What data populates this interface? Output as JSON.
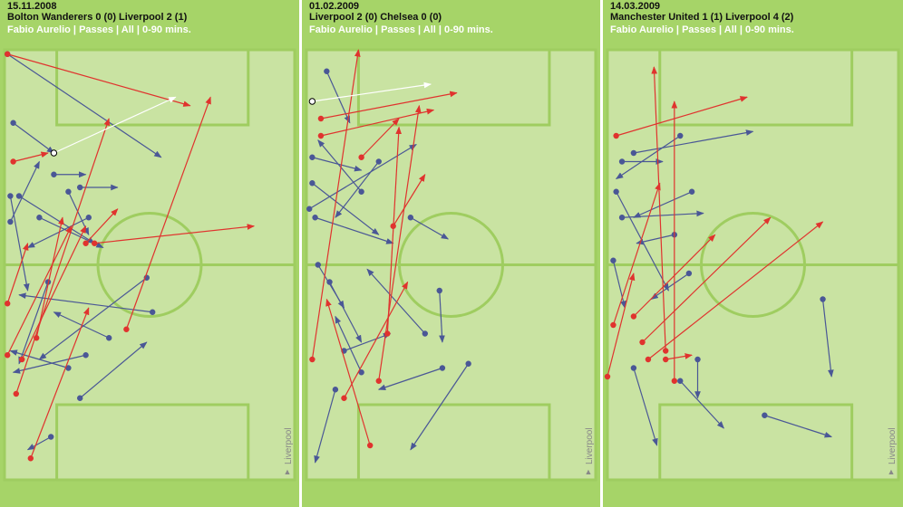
{
  "chart_data": [
    {
      "type": "pass-map",
      "date": "15.11.2008",
      "title": "Bolton Wanderers 0 (0) Liverpool 2 (1)",
      "subtitle": "Fabio Aurelio | Passes | All | 0-90 mins.",
      "team_label": "Liverpool",
      "xlim": [
        0,
        100
      ],
      "ylim": [
        0,
        100
      ],
      "series": [
        {
          "color": "#4a5796",
          "x": [
            1,
            3,
            5,
            26,
            12,
            2,
            17,
            49,
            51,
            36,
            26,
            16,
            22,
            28,
            29,
            15,
            2,
            22
          ],
          "y": [
            1,
            17,
            34,
            32,
            39,
            40,
            29,
            53,
            61,
            67,
            81,
            90,
            74,
            71,
            39,
            54,
            34,
            33
          ],
          "end_x": [
            54,
            17,
            31,
            39,
            34,
            12,
            28,
            12,
            5,
            17,
            49,
            8,
            2,
            3,
            8,
            5,
            8,
            29
          ],
          "end_y": [
            25,
            24,
            45,
            32,
            46,
            26,
            29,
            72,
            57,
            61,
            68,
            93,
            70,
            75,
            46,
            73,
            56,
            43
          ]
        },
        {
          "color": "#e0332e",
          "x": [
            1,
            31,
            3,
            42,
            4,
            9,
            1,
            6,
            11,
            28,
            1
          ],
          "y": [
            1,
            45,
            26,
            65,
            80,
            95,
            71,
            72,
            67,
            45,
            59
          ],
          "end_x": [
            64,
            86,
            15,
            71,
            36,
            29,
            23,
            28,
            20,
            39,
            8
          ],
          "end_y": [
            13,
            41,
            24,
            11,
            16,
            60,
            41,
            41,
            39,
            37,
            45
          ]
        },
        {
          "color": "#ffffff",
          "x": [
            17
          ],
          "y": [
            24
          ],
          "end_x": [
            59
          ],
          "end_y": [
            11
          ]
        }
      ]
    },
    {
      "type": "pass-map",
      "date": "01.02.2009",
      "title": "Liverpool 2 (0) Chelsea 0 (0)",
      "subtitle": "Fabio Aurelio | Passes | All | 0-90 mins.",
      "team_label": "Liverpool",
      "xlim": [
        0,
        100
      ],
      "ylim": [
        0,
        100
      ],
      "series": [
        {
          "color": "#4a5796",
          "x": [
            7,
            2,
            3,
            36,
            1,
            56,
            47,
            46,
            10,
            8,
            13,
            19,
            25,
            41,
            4,
            19,
            2
          ],
          "y": [
            5,
            31,
            39,
            39,
            37,
            73,
            74,
            56,
            79,
            54,
            70,
            33,
            26,
            66,
            50,
            75,
            25
          ],
          "end_x": [
            15,
            25,
            30,
            49,
            38,
            36,
            25,
            47,
            3,
            19,
            29,
            4,
            10,
            21,
            13,
            10,
            19
          ],
          "end_y": [
            17,
            43,
            45,
            44,
            22,
            93,
            79,
            68,
            96,
            68,
            66,
            21,
            39,
            51,
            60,
            62,
            28
          ]
        },
        {
          "color": "#e0332e",
          "x": [
            5,
            2,
            13,
            22,
            25,
            5,
            19,
            30,
            28
          ],
          "y": [
            16,
            72,
            81,
            92,
            77,
            20,
            25,
            41,
            66
          ],
          "end_x": [
            52,
            18,
            35,
            7,
            39,
            44,
            32,
            41,
            32
          ],
          "end_y": [
            10,
            0,
            54,
            58,
            13,
            14,
            16,
            29,
            18
          ]
        },
        {
          "color": "#ffffff",
          "x": [
            2
          ],
          "y": [
            12
          ],
          "end_x": [
            43
          ],
          "end_y": [
            8
          ]
        }
      ]
    },
    {
      "type": "pass-map",
      "date": "14.03.2009",
      "title": "Manchester United 1 (1) Liverpool 4 (2)",
      "subtitle": "Fabio Aurelio | Passes | All | 0-90 mins.",
      "team_label": "Liverpool",
      "xlim": [
        0,
        100
      ],
      "ylim": [
        0,
        100
      ],
      "series": [
        {
          "color": "#4a5796",
          "x": [
            25,
            9,
            29,
            74,
            54,
            31,
            25,
            9,
            3,
            5,
            23,
            5,
            28,
            2
          ],
          "y": [
            20,
            24,
            33,
            58,
            85,
            72,
            77,
            74,
            33,
            39,
            43,
            26,
            52,
            49
          ],
          "end_x": [
            3,
            50,
            9,
            77,
            77,
            31,
            40,
            17,
            21,
            33,
            10,
            19,
            15,
            6
          ],
          "end_y": [
            30,
            19,
            39,
            76,
            90,
            81,
            88,
            92,
            56,
            38,
            45,
            26,
            58,
            60
          ]
        },
        {
          "color": "#e0332e",
          "x": [
            3,
            14,
            12,
            23,
            20,
            0,
            2,
            20,
            9
          ],
          "y": [
            20,
            72,
            68,
            77,
            70,
            76,
            64,
            72,
            62
          ],
          "end_x": [
            48,
            74,
            56,
            23,
            16,
            9,
            18,
            29,
            37
          ],
          "end_y": [
            11,
            40,
            39,
            12,
            4,
            52,
            31,
            71,
            43
          ]
        }
      ]
    }
  ]
}
